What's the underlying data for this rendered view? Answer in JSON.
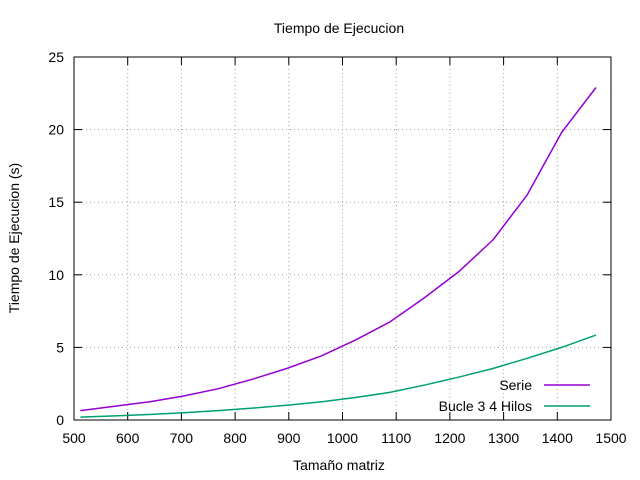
{
  "chart_data": {
    "type": "line",
    "title": "Tiempo de Ejecucion",
    "xlabel": "Tamaño matriz",
    "ylabel": "Tiempo de Ejecucion (s)",
    "xlim": [
      500,
      1500
    ],
    "ylim": [
      0,
      25
    ],
    "xticks": [
      500,
      600,
      700,
      800,
      900,
      1000,
      1100,
      1200,
      1300,
      1400,
      1500
    ],
    "yticks": [
      0,
      5,
      10,
      15,
      20,
      25
    ],
    "grid": true,
    "legend_position": "bottom-right",
    "series": [
      {
        "name": "Serie",
        "color": "#9400d3",
        "x": [
          512,
          576,
          640,
          704,
          768,
          832,
          896,
          960,
          1024,
          1088,
          1152,
          1216,
          1280,
          1344,
          1408,
          1472
        ],
        "y": [
          0.65,
          0.95,
          1.25,
          1.65,
          2.15,
          2.8,
          3.55,
          4.4,
          5.5,
          6.75,
          8.4,
          10.2,
          12.4,
          15.5,
          19.8,
          22.9
        ]
      },
      {
        "name": "Bucle 3 4 Hilos",
        "color": "#009e73",
        "x": [
          512,
          576,
          640,
          704,
          768,
          832,
          896,
          960,
          1024,
          1088,
          1152,
          1216,
          1280,
          1344,
          1408,
          1472
        ],
        "y": [
          0.2,
          0.28,
          0.38,
          0.5,
          0.65,
          0.82,
          1.02,
          1.25,
          1.55,
          1.9,
          2.4,
          2.95,
          3.55,
          4.25,
          5.0,
          5.85
        ]
      }
    ]
  }
}
